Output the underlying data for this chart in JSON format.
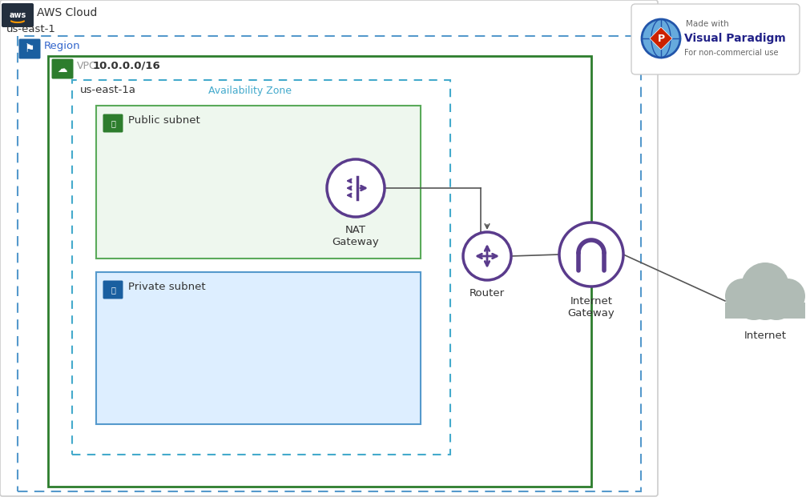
{
  "bg_color": "#ffffff",
  "aws_cloud_label": "AWS Cloud",
  "region_label": "us-east-1",
  "region_text": "Region",
  "vpc_label": "VPC  10.0.0.0/16",
  "az_label": "us-east-1a",
  "az_text": "Availability Zone",
  "public_subnet_label": "Public subnet",
  "private_subnet_label": "Private subnet",
  "nat_label": "NAT\nGateway",
  "router_label": "Router",
  "igw_label": "Internet\nGateway",
  "internet_label": "Internet",
  "purple": "#5a3b8c",
  "green_dark": "#2d7d2d",
  "green_border": "#5aaa5a",
  "green_light": "#eef7ee",
  "blue_light": "#ddeeff",
  "blue_border": "#5599cc",
  "blue_dark": "#1a5fa0",
  "dashed_blue": "#5599cc",
  "az_border": "#44aacc",
  "az_text_color": "#44aacc",
  "aws_orange": "#ff9900",
  "cloud_gray": "#b0bbb5",
  "text_dark": "#333333",
  "text_blue": "#3366cc",
  "vpc_text_gray": "#999999",
  "line_color": "#555555",
  "aws_bg": "#232f3e",
  "vp_blue": "#0066cc",
  "vp_globe_light": "#66aadd",
  "vp_globe_dark": "#2255aa",
  "vp_red": "#cc2200"
}
